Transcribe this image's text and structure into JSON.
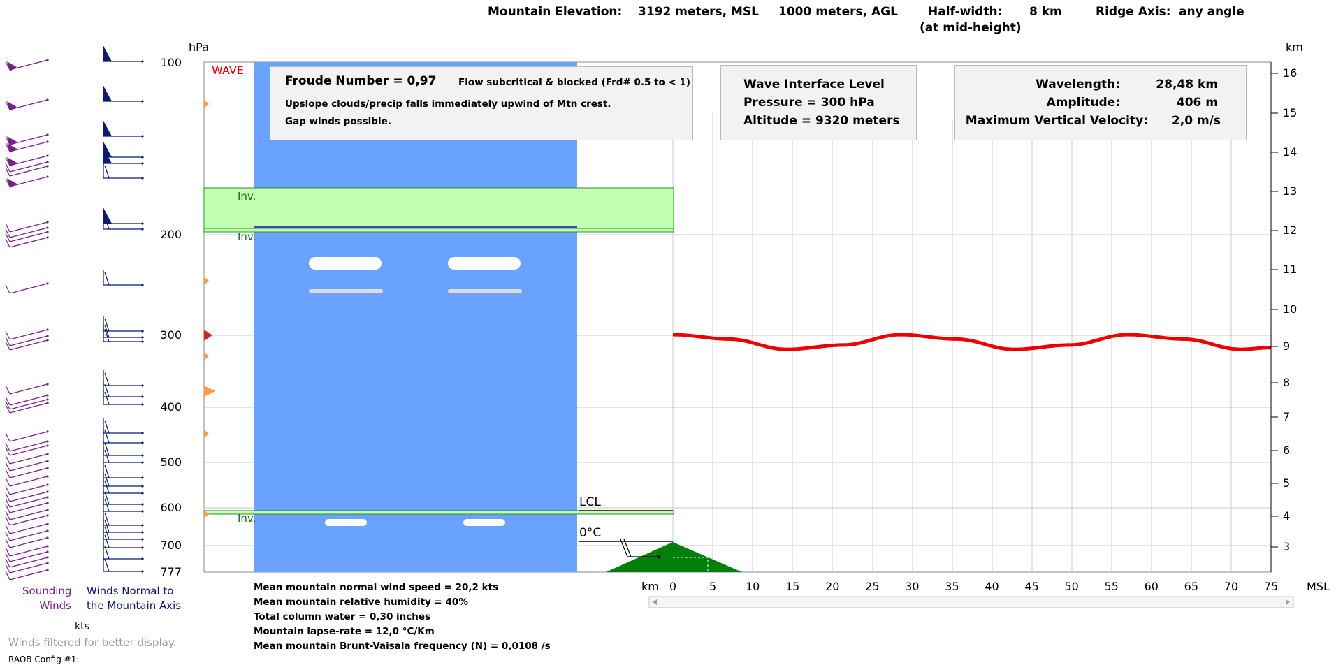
{
  "header": {
    "elevation_label": "Mountain Elevation:",
    "msl_value": "3192 meters, MSL",
    "agl_value": "1000 meters, AGL",
    "halfwidth_label": "Half-width:",
    "halfwidth_value": "8 km",
    "ridge_label": "Ridge Axis:",
    "ridge_value": "any angle",
    "midheight_note": "(at mid-height)"
  },
  "axes": {
    "left_unit": "hPa",
    "right_unit": "km",
    "pressure_ticks": [
      "100",
      "200",
      "300",
      "400",
      "500",
      "600",
      "700",
      "777"
    ],
    "km_ticks": [
      "16",
      "15",
      "14",
      "13",
      "12",
      "11",
      "10",
      "9",
      "8",
      "7",
      "6",
      "5",
      "4",
      "3"
    ],
    "x_unit": "km",
    "x_ticks": [
      "0",
      "5",
      "10",
      "15",
      "20",
      "25",
      "30",
      "35",
      "40",
      "45",
      "50",
      "55",
      "60",
      "65",
      "70",
      "75"
    ],
    "x_suffix": "MSL"
  },
  "labels": {
    "wave": "WAVE",
    "inversion": "Inv.",
    "lcl": "LCL",
    "freezing": "0°C",
    "sounding_winds": [
      "Sounding",
      "Winds"
    ],
    "normal_winds": [
      "Winds Normal to",
      "the Mountain Axis"
    ],
    "kts": "kts",
    "filter_note": "Winds filtered for better display.",
    "config": "RAOB Config #1:"
  },
  "froude": {
    "title": "Froude Number = 0,97",
    "regime": "Flow subcritical & blocked  (Frd# 0.5 to < 1)",
    "line1": "Upslope clouds/precip falls immediately upwind of Mtn crest.",
    "line2": "Gap winds possible."
  },
  "wave_interface": {
    "title": "Wave Interface Level",
    "pressure": "Pressure =  300 hPa",
    "altitude": "Altitude =  9320 meters"
  },
  "wave_params": {
    "wavelength_label": "Wavelength:",
    "wavelength_value": "28,48 km",
    "amplitude_label": "Amplitude:",
    "amplitude_value": "406 m",
    "vv_label": "Maximum Vertical Velocity:",
    "vv_value": "2,0 m/s"
  },
  "stats": [
    "Mean mountain normal wind speed = 20,2 kts",
    "Mean mountain relative humidity = 40%",
    "Total column water = 0,30 inches",
    "Mountain lapse-rate = 12,0 °C/Km",
    "Mean mountain Brunt-Vaisala frequency (N) = 0,0108 /s"
  ],
  "colors": {
    "sky": "#6aa3ff",
    "inversion": "#c2ffb0",
    "mountain": "#00800a",
    "wave": "#ee0000",
    "sounding_barbs": "#7a1f8c",
    "normal_barbs": "#0b1a7a",
    "labels_green": "#1a6e1a"
  },
  "chart_data": {
    "type": "line",
    "title": "",
    "xlabel": "km",
    "ylabel": "km",
    "xlim": [
      0,
      75
    ],
    "ylim": [
      2.5,
      16.3
    ],
    "series": [
      {
        "name": "",
        "x": [
          0,
          7.1,
          14.2,
          21.4,
          28.5,
          35.6,
          42.7,
          49.8,
          57.0,
          64.1,
          71.2,
          75
        ],
        "y": [
          9.32,
          9.2,
          8.92,
          9.04,
          9.32,
          9.2,
          8.92,
          9.04,
          9.32,
          9.2,
          8.92,
          8.97
        ]
      }
    ]
  }
}
